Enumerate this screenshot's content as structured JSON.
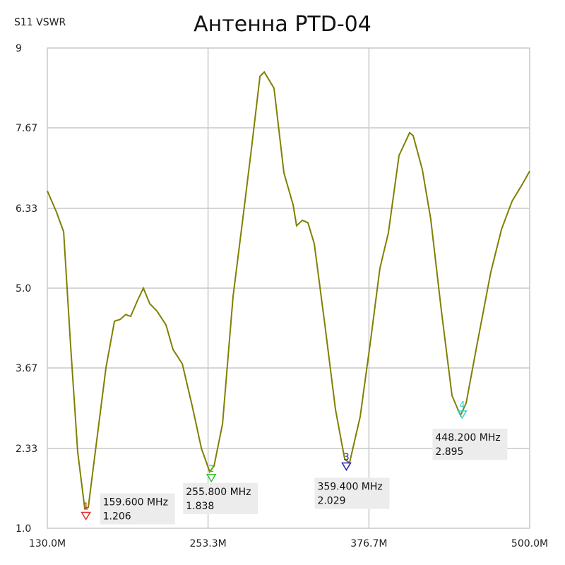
{
  "chart_data": {
    "type": "line",
    "title": "Антенна PTD-04",
    "y_label": "S11 VSWR",
    "xlim": [
      130,
      500
    ],
    "ylim": [
      1,
      9
    ],
    "xticks": [
      {
        "value": 130,
        "label": "130.0M"
      },
      {
        "value": 253.3,
        "label": "253.3M"
      },
      {
        "value": 376.7,
        "label": "376.7M"
      },
      {
        "value": 500,
        "label": "500.0M"
      }
    ],
    "yticks": [
      {
        "value": 1,
        "label": "1.0"
      },
      2.33,
      3.67,
      {
        "value": 5,
        "label": "5.0"
      },
      6.33,
      7.67,
      9
    ],
    "grid": true,
    "x": [
      130,
      137,
      142.5,
      147.9,
      153.3,
      158.7,
      161.4,
      166.8,
      175,
      181.5,
      185.9,
      190.1,
      193.9,
      199.3,
      203.7,
      208.6,
      214,
      221,
      226.4,
      233.5,
      241.1,
      248.2,
      254.6,
      257.9,
      264.4,
      272.5,
      280.6,
      286.6,
      293.1,
      296.4,
      303.9,
      311.5,
      318.5,
      321.2,
      325.6,
      329.9,
      334.8,
      342.9,
      351,
      358.1,
      361.8,
      370,
      378.1,
      385.1,
      391.6,
      399.8,
      407.9,
      410.6,
      417.6,
      424.1,
      432.3,
      440.4,
      446.9,
      451.3,
      459.4,
      470.2,
      478.4,
      486.5,
      494.6,
      500
    ],
    "series": [
      {
        "name": "S11 VSWR",
        "color": "#808000",
        "values": [
          6.62,
          6.27,
          5.94,
          4.04,
          2.27,
          1.33,
          1.35,
          2.27,
          3.68,
          4.45,
          4.48,
          4.56,
          4.53,
          4.8,
          5.0,
          4.74,
          4.62,
          4.39,
          3.98,
          3.74,
          3.04,
          2.33,
          1.94,
          2.04,
          2.74,
          4.86,
          6.27,
          7.33,
          8.53,
          8.6,
          8.33,
          6.92,
          6.39,
          6.04,
          6.13,
          6.09,
          5.74,
          4.39,
          2.98,
          2.15,
          2.09,
          2.86,
          4.15,
          5.33,
          5.92,
          7.21,
          7.59,
          7.54,
          6.98,
          6.15,
          4.62,
          3.21,
          2.88,
          3.09,
          4.04,
          5.27,
          5.98,
          6.45,
          6.74,
          6.95
        ]
      }
    ],
    "markers": [
      {
        "label": "1",
        "x": 159.6,
        "x_label": "159.600 MHz",
        "value": 1.206,
        "color": "#e03030"
      },
      {
        "label": "2",
        "x": 255.8,
        "x_label": "255.800 MHz",
        "value": 1.838,
        "color": "#30c030"
      },
      {
        "label": "3",
        "x": 359.4,
        "x_label": "359.400 MHz",
        "value": 2.029,
        "color": "#2020c0"
      },
      {
        "label": "4",
        "x": 448.2,
        "x_label": "448.200 MHz",
        "value": 2.895,
        "color": "#30d0d0"
      }
    ]
  }
}
